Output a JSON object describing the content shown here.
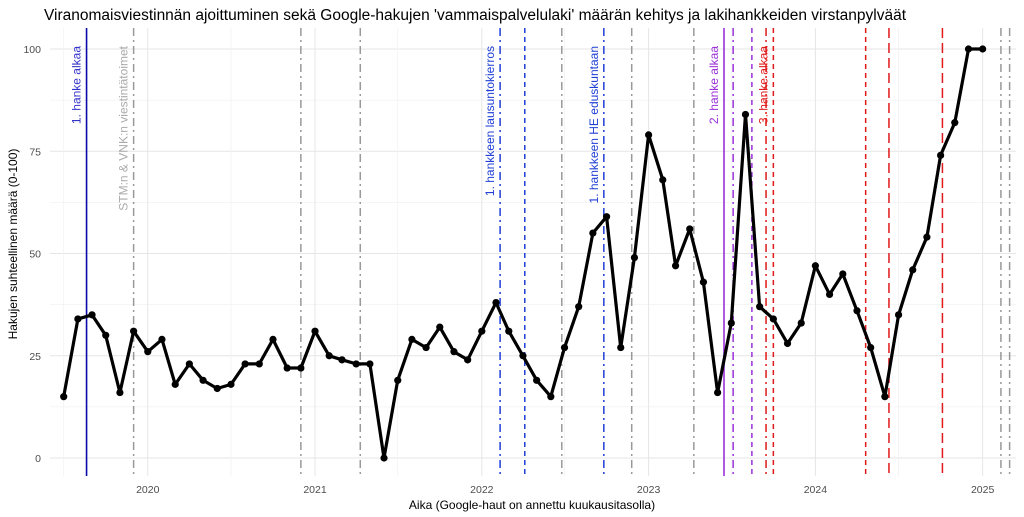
{
  "chart_data": {
    "type": "line",
    "title": "Viranomaisviestinnän ajoittuminen sekä Google-hakujen 'vammaispalvelulaki' määrän kehitys ja lakihankkeiden virstanpylväät",
    "xlabel": "Aika (Google-haut on annettu kuukausitasolla)",
    "ylabel": "Hakujen suhteellinen määrä (0-100)",
    "ylim": [
      0,
      100
    ],
    "xlim": [
      "2019-06-01",
      "2025-03-15"
    ],
    "y_ticks": [
      0,
      25,
      50,
      75,
      100
    ],
    "x_ticks": [
      {
        "date": "2020-01-01",
        "label": "2020"
      },
      {
        "date": "2021-01-01",
        "label": "2021"
      },
      {
        "date": "2022-01-01",
        "label": "2022"
      },
      {
        "date": "2023-01-01",
        "label": "2023"
      },
      {
        "date": "2024-01-01",
        "label": "2024"
      },
      {
        "date": "2025-01-01",
        "label": "2025"
      }
    ],
    "grid": true,
    "series": [
      {
        "color": "#000000",
        "x": [
          "2019-07-01",
          "2019-08-01",
          "2019-09-01",
          "2019-10-01",
          "2019-11-01",
          "2019-12-01",
          "2020-01-01",
          "2020-02-01",
          "2020-03-01",
          "2020-04-01",
          "2020-05-01",
          "2020-06-01",
          "2020-07-01",
          "2020-08-01",
          "2020-09-01",
          "2020-10-01",
          "2020-11-01",
          "2020-12-01",
          "2021-01-01",
          "2021-02-01",
          "2021-03-01",
          "2021-04-01",
          "2021-05-01",
          "2021-06-01",
          "2021-07-01",
          "2021-08-01",
          "2021-09-01",
          "2021-10-01",
          "2021-11-01",
          "2021-12-01",
          "2022-01-01",
          "2022-02-01",
          "2022-03-01",
          "2022-04-01",
          "2022-05-01",
          "2022-06-01",
          "2022-07-01",
          "2022-08-01",
          "2022-09-01",
          "2022-10-01",
          "2022-11-01",
          "2022-12-01",
          "2023-01-01",
          "2023-02-01",
          "2023-03-01",
          "2023-04-01",
          "2023-05-01",
          "2023-06-01",
          "2023-07-01",
          "2023-08-01",
          "2023-09-01",
          "2023-10-01",
          "2023-11-01",
          "2023-12-01",
          "2024-01-01",
          "2024-02-01",
          "2024-03-01",
          "2024-04-01",
          "2024-05-01",
          "2024-06-01",
          "2024-07-01",
          "2024-08-01",
          "2024-09-01",
          "2024-10-01",
          "2024-11-01",
          "2024-12-01",
          "2025-01-01"
        ],
        "values": [
          15,
          34,
          35,
          30,
          16,
          31,
          26,
          29,
          18,
          23,
          19,
          17,
          18,
          23,
          23,
          29,
          22,
          22,
          31,
          25,
          24,
          23,
          23,
          0,
          19,
          29,
          27,
          32,
          26,
          24,
          31,
          38,
          31,
          25,
          19,
          15,
          27,
          37,
          55,
          59,
          27,
          49,
          79,
          68,
          47,
          56,
          43,
          16,
          33,
          84,
          37,
          34,
          28,
          33,
          47,
          40,
          45,
          36,
          27,
          15,
          35,
          46,
          54,
          74,
          82,
          100,
          100
        ]
      }
    ],
    "reference_lines": [
      {
        "date": "2019-08-20",
        "color": "#0a0aa8",
        "style": "solid",
        "label": "1. hanke alkaa",
        "label_color": "#3333cc"
      },
      {
        "date": "2019-12-01",
        "color": "#999999",
        "style": "dashdot",
        "label": "STM:n & VNK:n viestintätoimet",
        "label_color": "#aaaaaa"
      },
      {
        "date": "2020-12-01",
        "color": "#999999",
        "style": "dashdot",
        "label": ""
      },
      {
        "date": "2021-04-10",
        "color": "#999999",
        "style": "dashdot",
        "label": ""
      },
      {
        "date": "2022-02-10",
        "color": "#1f3fd6",
        "style": "dashdot",
        "label": "1. hankkeen lausuntokierros",
        "label_color": "#1f3fd6"
      },
      {
        "date": "2022-04-05",
        "color": "#1f3fd6",
        "style": "dashed",
        "label": ""
      },
      {
        "date": "2022-06-25",
        "color": "#999999",
        "style": "dashdot",
        "label": ""
      },
      {
        "date": "2022-09-25",
        "color": "#1f3fd6",
        "style": "dashdot",
        "label": "1. hankkeen HE eduskuntaan",
        "label_color": "#1f3fd6"
      },
      {
        "date": "2022-11-25",
        "color": "#999999",
        "style": "dashdot",
        "label": ""
      },
      {
        "date": "2023-04-10",
        "color": "#999999",
        "style": "dashdot",
        "label": ""
      },
      {
        "date": "2023-06-15",
        "color": "#9b30d9",
        "style": "solid",
        "label": "2. hanke alkaa",
        "label_color": "#9b30d9"
      },
      {
        "date": "2023-07-05",
        "color": "#9b30d9",
        "style": "dashdot",
        "label": ""
      },
      {
        "date": "2023-08-15",
        "color": "#9b30d9",
        "style": "dashed",
        "label": ""
      },
      {
        "date": "2023-09-15",
        "color": "#e01a1a",
        "style": "dashdot",
        "label": ""
      },
      {
        "date": "2023-10-01",
        "color": "#e01a1a",
        "style": "dashed",
        "label": "3. hanke alkaa",
        "label_color": "#e01a1a"
      },
      {
        "date": "2024-04-20",
        "color": "#e01a1a",
        "style": "dashed",
        "label": ""
      },
      {
        "date": "2024-06-10",
        "color": "#e01a1a",
        "style": "longdash",
        "label": ""
      },
      {
        "date": "2024-10-05",
        "color": "#e01a1a",
        "style": "longdash",
        "label": ""
      },
      {
        "date": "2025-02-10",
        "color": "#999999",
        "style": "dashdot",
        "label": ""
      },
      {
        "date": "2025-03-01",
        "color": "#999999",
        "style": "dashdot",
        "label": ""
      }
    ]
  }
}
